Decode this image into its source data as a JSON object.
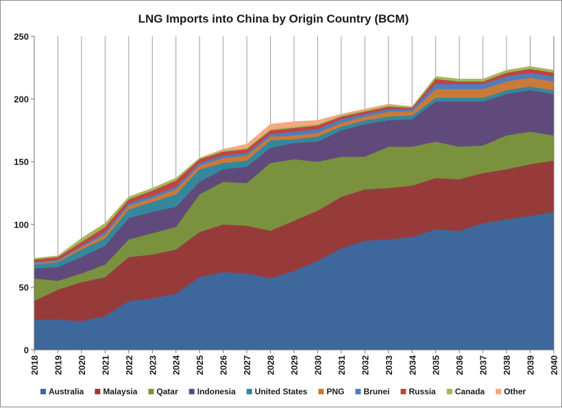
{
  "chart_data": {
    "type": "area",
    "stacked": true,
    "title": "LNG Imports into China by Origin Country (BCM)",
    "xlabel": "",
    "ylabel": "",
    "x": [
      "2018",
      "2019",
      "2020",
      "2021",
      "2022",
      "2023",
      "2024",
      "2025",
      "2026",
      "2027",
      "2028",
      "2029",
      "2030",
      "2031",
      "2032",
      "2033",
      "2034",
      "2035",
      "2036",
      "2037",
      "2038",
      "2039",
      "2040"
    ],
    "ylim": [
      0,
      250
    ],
    "yticks": [
      0,
      50,
      100,
      150,
      200,
      250
    ],
    "grid": "vertical",
    "legend_position": "bottom",
    "series": [
      {
        "name": "Australia",
        "color": "#3e679b",
        "values": [
          24,
          24,
          23,
          27,
          39,
          41,
          45,
          58,
          62,
          61,
          57,
          63,
          71,
          81,
          87,
          88,
          90,
          96,
          95,
          101,
          104,
          107,
          110
        ]
      },
      {
        "name": "Malaysia",
        "color": "#973b3a",
        "values": [
          15,
          24,
          31,
          31,
          35,
          35,
          35,
          36,
          38,
          38,
          38,
          40,
          40,
          41,
          41,
          41,
          41,
          41,
          41,
          40,
          40,
          41,
          41
        ]
      },
      {
        "name": "Qatar",
        "color": "#7a923d",
        "values": [
          18,
          7,
          7,
          10,
          14,
          17,
          18,
          30,
          34,
          34,
          54,
          49,
          39,
          32,
          26,
          33,
          31,
          29,
          26,
          22,
          27,
          26,
          20
        ]
      },
      {
        "name": "Indonesia",
        "color": "#604a7b",
        "values": [
          8,
          11,
          13,
          15,
          17,
          17,
          16,
          10,
          10,
          13,
          12,
          13,
          16,
          21,
          26,
          21,
          22,
          32,
          36,
          35,
          33,
          33,
          33
        ]
      },
      {
        "name": "United States",
        "color": "#36869c",
        "values": [
          3,
          4,
          6,
          6,
          7,
          8,
          10,
          10,
          5,
          5,
          6,
          3,
          4,
          3,
          3,
          3,
          3,
          3,
          3,
          3,
          3,
          3,
          3
        ]
      },
      {
        "name": "PNG",
        "color": "#c97a39",
        "values": [
          1,
          1,
          2,
          3,
          3,
          3,
          4,
          3,
          4,
          4,
          3,
          3,
          3,
          3,
          3,
          4,
          3,
          7,
          7,
          7,
          7,
          7,
          7
        ]
      },
      {
        "name": "Brunei",
        "color": "#4f7dbd",
        "values": [
          1,
          1,
          1,
          2,
          2,
          2,
          2,
          2,
          2,
          2,
          2,
          3,
          3,
          3,
          2,
          2,
          2,
          4,
          4,
          4,
          4,
          4,
          4
        ]
      },
      {
        "name": "Russia",
        "color": "#bf4542",
        "values": [
          2,
          2,
          3,
          4,
          3,
          4,
          5,
          3,
          3,
          3,
          3,
          3,
          3,
          2,
          2,
          2,
          1,
          4,
          2,
          2,
          3,
          3,
          3
        ]
      },
      {
        "name": "Canada",
        "color": "#9bbb59",
        "values": [
          1,
          1,
          3,
          3,
          2,
          2,
          2,
          1,
          1,
          1,
          1,
          1,
          1,
          1,
          1,
          1,
          1,
          2,
          2,
          2,
          2,
          2,
          2
        ]
      },
      {
        "name": "Other",
        "color": "#f6a97d",
        "values": [
          0,
          0,
          0,
          0,
          0,
          0,
          0,
          0,
          1,
          3,
          4,
          4,
          3,
          1,
          1,
          1,
          0,
          0,
          0,
          0,
          0,
          0,
          0
        ]
      }
    ]
  }
}
